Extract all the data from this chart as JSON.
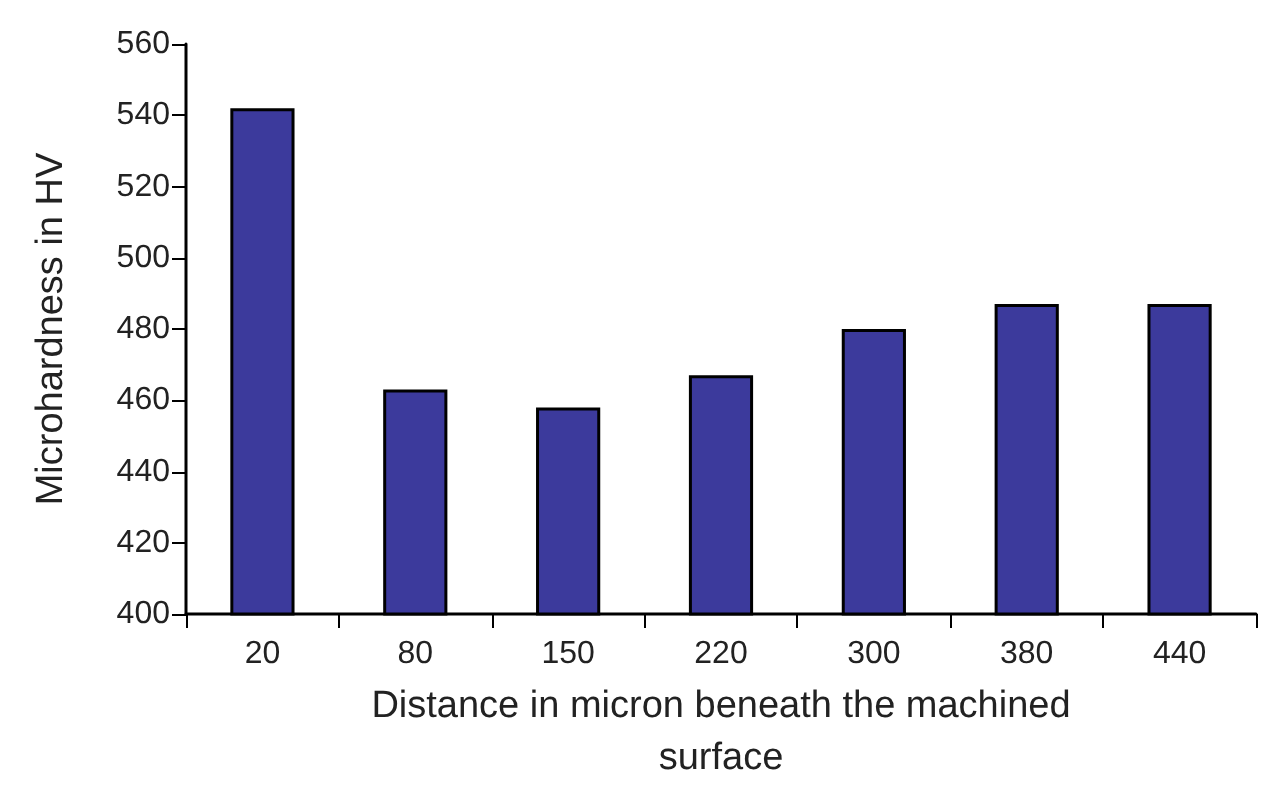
{
  "chart_data": {
    "type": "bar",
    "xlabel": "Distance in micron beneath the machined\nsurface",
    "ylabel": "Microhardness in HV",
    "categories": [
      "20",
      "80",
      "150",
      "220",
      "300",
      "380",
      "440"
    ],
    "values": [
      542,
      463,
      458,
      467,
      480,
      487,
      487
    ],
    "color": "#3c3a9c",
    "ylim": [
      400,
      560
    ],
    "yticks": [
      400,
      420,
      440,
      460,
      480,
      500,
      520,
      540,
      560
    ],
    "grid": false
  }
}
